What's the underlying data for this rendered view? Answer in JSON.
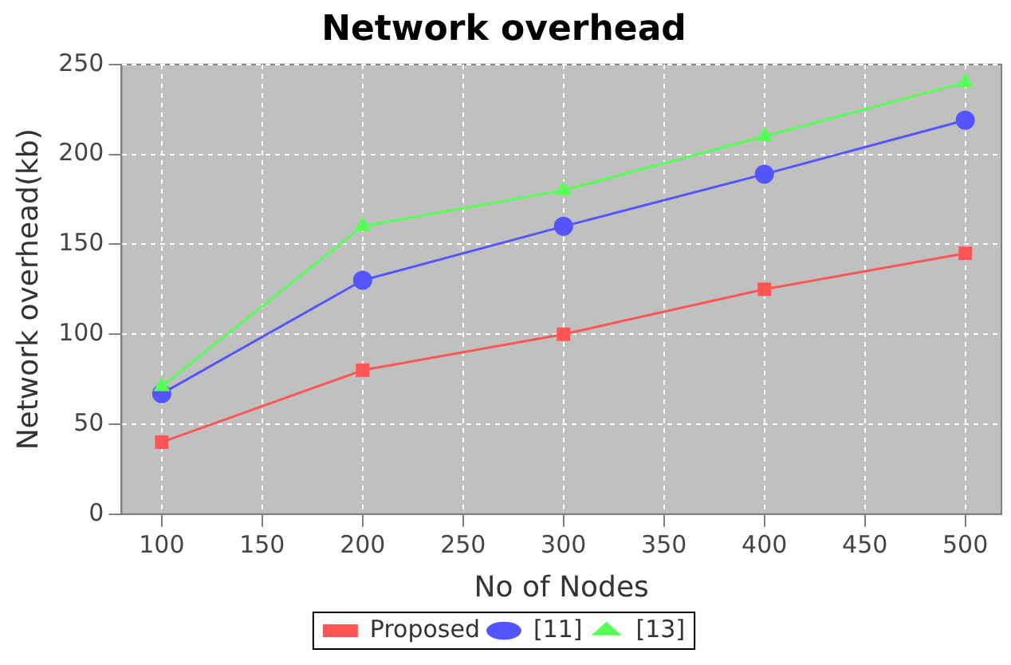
{
  "chart_data": {
    "type": "line",
    "title": "Network overhead",
    "xlabel": "No of Nodes",
    "ylabel": "Network overhead(kb)",
    "x": [
      100,
      200,
      300,
      400,
      500
    ],
    "series": [
      {
        "name": "Proposed",
        "color": "#ff5555",
        "marker": "square",
        "values": [
          40,
          80,
          100,
          125,
          145
        ]
      },
      {
        "name": "[11]",
        "color": "#5555ff",
        "marker": "circle",
        "values": [
          67,
          130,
          160,
          189,
          219
        ]
      },
      {
        "name": "[13]",
        "color": "#55ff55",
        "marker": "triangle",
        "values": [
          71,
          160,
          180,
          210,
          240
        ]
      }
    ],
    "xlim": [
      80,
      518
    ],
    "xticks": [
      100,
      150,
      200,
      250,
      300,
      350,
      400,
      450,
      500
    ],
    "ylim": [
      0,
      250
    ],
    "yticks": [
      0,
      50,
      100,
      150,
      200,
      250
    ],
    "grid": true,
    "legend": "bottom",
    "line_style": "solid"
  }
}
